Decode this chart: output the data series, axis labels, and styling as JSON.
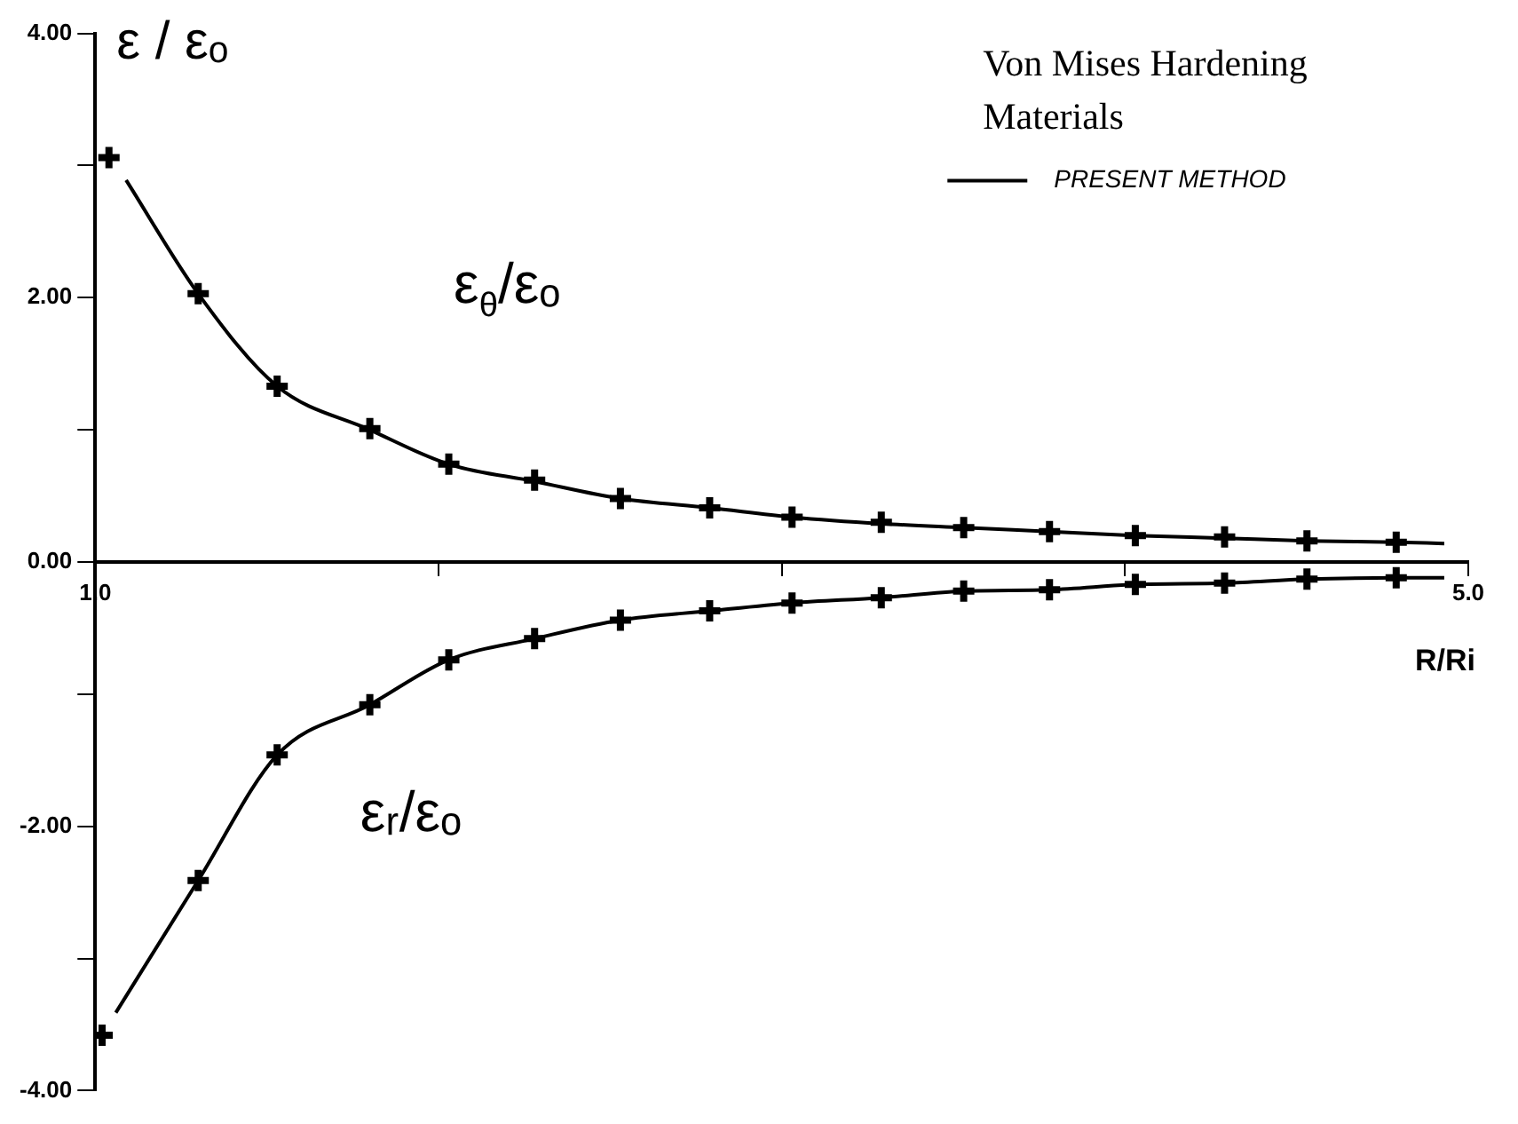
{
  "chart_data": {
    "type": "line",
    "title": "Von Mises Hardening Materials",
    "ylabel": "ε / εₒ",
    "xlabel": "R/Ri",
    "xlim": [
      1,
      5
    ],
    "xticks": [
      {
        "value": 1,
        "label": "1.0"
      },
      {
        "value": 2,
        "label": null
      },
      {
        "value": 3,
        "label": null
      },
      {
        "value": 4,
        "label": null
      },
      {
        "value": 5,
        "label": "5.0"
      }
    ],
    "ylim": [
      -4,
      4
    ],
    "yticks": [
      {
        "value": -4,
        "label": "-4.00"
      },
      {
        "value": -3,
        "label": null
      },
      {
        "value": -2,
        "label": "-2.00"
      },
      {
        "value": -1,
        "label": null
      },
      {
        "value": 0,
        "label": "0.00"
      },
      {
        "value": 1,
        "label": null
      },
      {
        "value": 2,
        "label": "2.00"
      },
      {
        "value": 3,
        "label": null
      },
      {
        "value": 4,
        "label": "4.00"
      }
    ],
    "grid": false,
    "legend": "top right",
    "line_style": "solid",
    "annotations": [
      "ε$_{θ}$/εₒ",
      "εᵣ/εₒ"
    ],
    "series": [
      {
        "name": "PRESENT METHOD",
        "color": "#000000",
        "marker": "none",
        "x": [
          1.09,
          1.3,
          1.53,
          1.8,
          2.03,
          2.28,
          2.53,
          2.79,
          3.03,
          3.29,
          3.53,
          3.78,
          4.03,
          4.29,
          4.53,
          4.79,
          4.93
        ],
        "values": [
          2.89,
          2.03,
          1.33,
          1.0,
          0.74,
          0.61,
          0.48,
          0.41,
          0.34,
          0.29,
          0.26,
          0.23,
          0.2,
          0.18,
          0.16,
          0.15,
          0.14
        ]
      },
      {
        "color": "#000000",
        "marker": "none",
        "x": [
          1.06,
          1.3,
          1.53,
          1.8,
          2.03,
          2.28,
          2.53,
          2.79,
          3.03,
          3.29,
          3.53,
          3.78,
          4.03,
          4.29,
          4.53,
          4.79,
          4.93
        ],
        "values": [
          -3.41,
          -2.41,
          -1.46,
          -1.08,
          -0.74,
          -0.58,
          -0.44,
          -0.37,
          -0.31,
          -0.27,
          -0.22,
          -0.21,
          -0.17,
          -0.16,
          -0.13,
          -0.12,
          -0.12
        ]
      },
      {
        "type": "scatter",
        "color": "#000000",
        "marker": "cross",
        "x": [
          1.04,
          1.3,
          1.53,
          1.8,
          2.03,
          2.28,
          2.53,
          2.79,
          3.03,
          3.29,
          3.53,
          3.78,
          4.03,
          4.29,
          4.53,
          4.79
        ],
        "values": [
          3.06,
          2.03,
          1.33,
          1.01,
          0.74,
          0.62,
          0.48,
          0.41,
          0.34,
          0.3,
          0.26,
          0.23,
          0.2,
          0.19,
          0.16,
          0.15
        ]
      },
      {
        "type": "scatter",
        "color": "#000000",
        "marker": "cross",
        "x": [
          1.02,
          1.3,
          1.53,
          1.8,
          2.03,
          2.28,
          2.53,
          2.79,
          3.03,
          3.29,
          3.53,
          3.78,
          4.03,
          4.29,
          4.53,
          4.79
        ],
        "values": [
          -3.58,
          -2.41,
          -1.46,
          -1.08,
          -0.74,
          -0.58,
          -0.44,
          -0.37,
          -0.31,
          -0.27,
          -0.22,
          -0.21,
          -0.17,
          -0.16,
          -0.13,
          -0.12
        ]
      }
    ]
  }
}
